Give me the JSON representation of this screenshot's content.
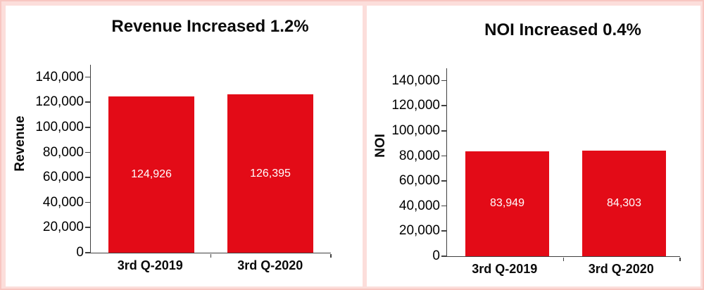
{
  "page": {
    "background_color": "#fcdedb",
    "panel_color": "#ffffff",
    "axis_color": "#404040",
    "text_color": "#000000"
  },
  "chart_data": [
    {
      "type": "bar",
      "title": "Revenue Increased 1.2%",
      "ylabel": "Revenue",
      "xlabel": "",
      "categories": [
        "3rd Q-2019",
        "3rd Q-2020"
      ],
      "values": [
        124926,
        126395
      ],
      "value_labels": [
        "124,926",
        "126,395"
      ],
      "bar_color": "#e30b17",
      "value_label_color": "#ffffff",
      "ylim": [
        0,
        150000
      ],
      "ytick_values": [
        0,
        20000,
        40000,
        60000,
        80000,
        100000,
        120000,
        140000
      ],
      "ytick_labels": [
        "0",
        "20,000",
        "40,000",
        "60,000",
        "80,000",
        "100,000",
        "120,000",
        "140,000"
      ],
      "grid": false,
      "legend": "none"
    },
    {
      "type": "bar",
      "title": "NOI Increased 0.4%",
      "ylabel": "NOI",
      "xlabel": "",
      "categories": [
        "3rd Q-2019",
        "3rd Q-2020"
      ],
      "values": [
        83949,
        84303
      ],
      "value_labels": [
        "83,949",
        "84,303"
      ],
      "bar_color": "#e30b17",
      "value_label_color": "#ffffff",
      "ylim": [
        0,
        150000
      ],
      "ytick_values": [
        0,
        20000,
        40000,
        60000,
        80000,
        100000,
        120000,
        140000
      ],
      "ytick_labels": [
        "0",
        "20,000",
        "40,000",
        "60,000",
        "80,000",
        "100,000",
        "120,000",
        "140,000"
      ],
      "grid": false,
      "legend": "none"
    }
  ]
}
